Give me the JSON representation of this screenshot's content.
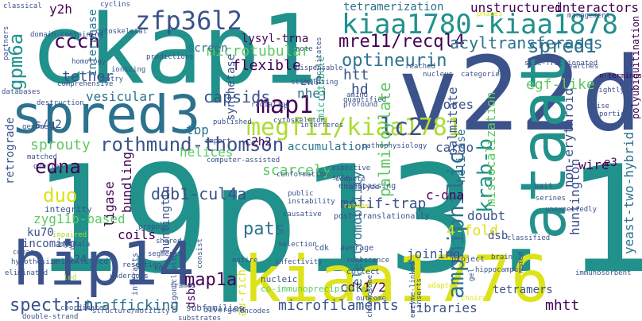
{
  "palette": {
    "c1": "#440154",
    "c2": "#3b528b",
    "c3": "#2c728e",
    "c4": "#21918c",
    "c5": "#28ae80",
    "c6": "#5ec962",
    "c7": "#addc30",
    "c8": "#dde318"
  },
  "words": [
    "19p13.1",
    "ckap1",
    "v22d",
    "kiaa1776",
    "hip14",
    "spred3",
    "ataat",
    "zfp36l2",
    "kiaa1780-kiaa1878",
    "megf11/kiaa1781",
    "rothmund-thomson",
    "map1",
    "lc2",
    "spred1",
    "amphiphilic",
    "edna",
    "gpm6a",
    "ccch",
    "krab-b",
    "duo",
    "optineurin",
    "mre11/recql4",
    "acyltransferases",
    "unstructured",
    "interactors",
    "tetramerization",
    "microtubular",
    "microtubule",
    "ddb1-cul4a",
    "pats",
    "map1a",
    "spectrin",
    "trafficking",
    "sprouty",
    "retrograde",
    "capsids",
    "cores",
    "egf-like",
    "motif-trap",
    "yeast-two-hybrid",
    "huntington",
    "non-erythroid",
    "palmitoylate",
    "palmitate",
    "electromobility",
    "mislocalization",
    "helicase",
    "4-fold",
    "doubt",
    "dsb",
    "joining",
    "libraries",
    "tetramers",
    "mhtt",
    "microfilaments",
    "zyg11b-based",
    "ligase",
    "bundling",
    "coils",
    "p24",
    "ku70",
    "incoming",
    "huntingtin",
    "au-rich",
    "cdk1/2",
    "scarcely",
    "c-dna",
    "accumulation",
    "c2h2",
    "helices",
    "tbp",
    "lysyl-trna",
    "synthetase",
    "screen",
    "flexible",
    "nhej",
    "znf",
    "htt",
    "hd",
    "tether",
    "vesicular",
    "s/g2",
    "interphase",
    "y2h",
    "cargo",
    "wire",
    "e3",
    "interacts",
    "dsbs",
    "polyubiquitination",
    "n-terminus",
    "computer-assisted",
    "subfamilies",
    "integrity",
    "encodes",
    "divergent",
    "co-immunoprecipitates",
    "nucleic",
    "collect",
    "cdk",
    "average",
    "frames",
    "segments",
    "shared",
    "propose",
    "amygdala",
    "cdnas",
    "hypothesize",
    "unidentified",
    "eliminated",
    "impaired",
    "public",
    "instability",
    "catalyze",
    "compete",
    "sole",
    "respective",
    "pathophysiology",
    "structure/motility",
    "substrates",
    "coordinates",
    "double-strand",
    "led",
    "undergoes",
    "resection",
    "oligonucleotide",
    "kda",
    "post-translationally",
    "random",
    "encompassing",
    "chromosome",
    "enzyme-linked",
    "inserts",
    "adapter",
    "choice",
    "bait",
    "serines",
    "unexpectedly",
    "classified",
    "project",
    "hippocampus",
    "brain",
    "named",
    "immunosorbent",
    "predictions",
    "ionizing",
    "entry",
    "homology",
    "cytoskeletal",
    "domain-containing",
    "partners",
    "classical",
    "cyclins",
    "phases",
    "management",
    "size-fractionated",
    "searches",
    "raise",
    "tightly",
    "portion",
    "quantified",
    "amino",
    "profound",
    "published",
    "radiation",
    "sp",
    "interferes",
    "cytoskeleton",
    "genome",
    "matched",
    "overlap",
    "destruction",
    "databases",
    "comprehensive",
    "stimulating",
    "dispensable",
    "facilitates",
    "reached",
    "nucleus",
    "categories",
    "hiv",
    "import",
    "conformation",
    "selection",
    "causative",
    "infectivity",
    "entire",
    "consist",
    "gel",
    "senescence",
    "outcome",
    "note"
  ]
}
